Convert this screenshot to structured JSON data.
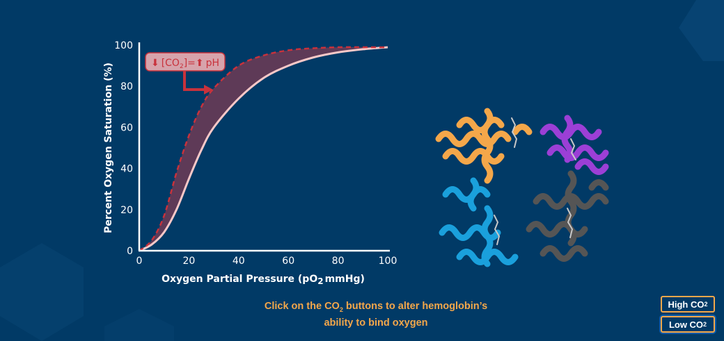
{
  "colors": {
    "background": "#013a66",
    "accent": "#f4a74a",
    "annotation": "#c8323c",
    "fill": "#5e3a57",
    "solid_curve": "#f8c8c8"
  },
  "chart_data": {
    "type": "line",
    "xlabel_main": "Oxygen Partial Pressure (pO",
    "xlabel_sub": "2",
    "xlabel_end": "mmHg)",
    "ylabel": "Percent Oxygen Saturation (%)",
    "xlim": [
      0,
      100
    ],
    "ylim": [
      0,
      100
    ],
    "xticks": [
      "0",
      "20",
      "40",
      "60",
      "80",
      "100"
    ],
    "yticks": [
      "0",
      "20",
      "40",
      "60",
      "80",
      "100"
    ],
    "grid": false,
    "x": [
      0,
      5,
      10,
      15,
      20,
      25,
      30,
      40,
      50,
      60,
      70,
      80,
      90,
      100
    ],
    "series": [
      {
        "style": "solid",
        "values": [
          0,
          3,
          9,
          20,
          35,
          49,
          60,
          74,
          84,
          90,
          94,
          96.5,
          98,
          99
        ]
      },
      {
        "style": "dashed",
        "values": [
          0,
          5,
          17,
          38,
          56,
          70,
          79,
          90,
          95,
          97.5,
          98.5,
          99,
          99,
          99
        ]
      }
    ],
    "annotation": {
      "arrow_down": "⬇",
      "pre": "[CO",
      "sub": "2",
      "post": "]=",
      "arrow_up": "⬆",
      "end": "pH"
    }
  },
  "instruction": {
    "line1_pre": "Click on the CO",
    "line1_sub": "2",
    "line1_post": " buttons to alter hemoglobin’s",
    "line2": "ability to bind oxygen"
  },
  "buttons": [
    {
      "label": "High CO",
      "sub": "2",
      "active": false
    },
    {
      "label": "Low CO",
      "sub": "2",
      "active": true
    }
  ],
  "image": {
    "icon": "hemoglobin-molecule-illustration"
  }
}
